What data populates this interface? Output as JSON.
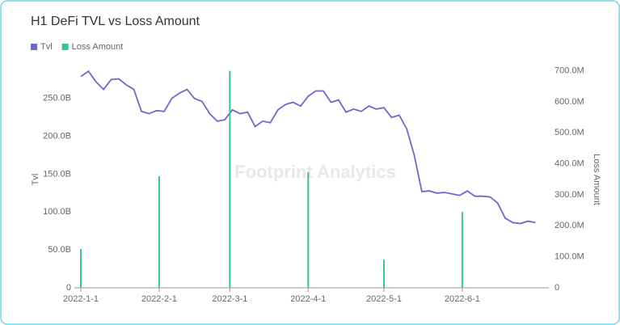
{
  "chart_data": {
    "type": "line_bar",
    "title": "H1 DeFi TVL vs Loss Amount",
    "watermark": "Footprint Analytics",
    "ylabel": "Tvl",
    "y2label": "Loss Amount",
    "xlim": [
      "2022-1-1",
      "2022-7-4"
    ],
    "xticks": [
      "2022-1-1",
      "2022-2-1",
      "2022-3-1",
      "2022-4-1",
      "2022-5-1",
      "2022-6-1"
    ],
    "ylim": [
      0,
      300
    ],
    "yticks": [
      0,
      {
        "value": 50,
        "label": "50.0B"
      },
      {
        "value": 100,
        "label": "100.0B"
      },
      {
        "value": 150,
        "label": "150.0B"
      },
      {
        "value": 200,
        "label": "200.0B"
      },
      {
        "value": 250,
        "label": "250.0B"
      }
    ],
    "y2lim": [
      0,
      733
    ],
    "y2ticks": [
      0,
      {
        "value": 100,
        "label": "100.0M"
      },
      {
        "value": 200,
        "label": "200.0M"
      },
      {
        "value": 300,
        "label": "300.0M"
      },
      {
        "value": 400,
        "label": "400.0M"
      },
      {
        "value": 500,
        "label": "500.0M"
      },
      {
        "value": 600,
        "label": "600.0M"
      },
      {
        "value": 700,
        "label": "700.0M"
      }
    ],
    "legend": "top-left",
    "series": [
      {
        "name": "Tvl",
        "color": "#6b68cf",
        "kind": "line",
        "x": [
          "2022-1-1",
          "2022-1-4",
          "2022-1-7",
          "2022-1-10",
          "2022-1-13",
          "2022-1-16",
          "2022-1-19",
          "2022-1-22",
          "2022-1-25",
          "2022-1-28",
          "2022-1-31",
          "2022-2-3",
          "2022-2-6",
          "2022-2-9",
          "2022-2-12",
          "2022-2-15",
          "2022-2-18",
          "2022-2-21",
          "2022-2-24",
          "2022-2-27",
          "2022-3-2",
          "2022-3-5",
          "2022-3-8",
          "2022-3-11",
          "2022-3-14",
          "2022-3-17",
          "2022-3-20",
          "2022-3-23",
          "2022-3-26",
          "2022-3-29",
          "2022-4-1",
          "2022-4-4",
          "2022-4-7",
          "2022-4-10",
          "2022-4-13",
          "2022-4-16",
          "2022-4-19",
          "2022-4-22",
          "2022-4-25",
          "2022-4-28",
          "2022-5-1",
          "2022-5-4",
          "2022-5-7",
          "2022-5-10",
          "2022-5-13",
          "2022-5-16",
          "2022-5-19",
          "2022-5-22",
          "2022-5-25",
          "2022-5-28",
          "2022-5-31",
          "2022-6-3",
          "2022-6-6",
          "2022-6-9",
          "2022-6-12",
          "2022-6-15",
          "2022-6-18",
          "2022-6-21",
          "2022-6-24",
          "2022-6-27",
          "2022-6-30"
        ],
        "values": [
          279,
          286,
          272,
          262,
          275,
          276,
          268,
          262,
          233,
          230,
          234,
          233,
          250,
          257,
          262,
          250,
          246,
          230,
          220,
          222,
          235,
          230,
          232,
          213,
          220,
          218,
          235,
          242,
          245,
          240,
          253,
          260,
          260,
          245,
          248,
          232,
          236,
          233,
          240,
          236,
          238,
          225,
          228,
          210,
          175,
          127,
          128,
          125,
          126,
          124,
          122,
          128,
          121,
          121,
          120,
          112,
          92,
          86,
          85,
          88,
          86
        ]
      },
      {
        "name": "Loss Amount",
        "color": "#35c495",
        "kind": "bar",
        "axis": "y2",
        "x": [
          "2022-1-1",
          "2022-2-1",
          "2022-3-1",
          "2022-4-1",
          "2022-5-1",
          "2022-6-1"
        ],
        "values": [
          125,
          360,
          700,
          373,
          91,
          245
        ]
      }
    ]
  }
}
